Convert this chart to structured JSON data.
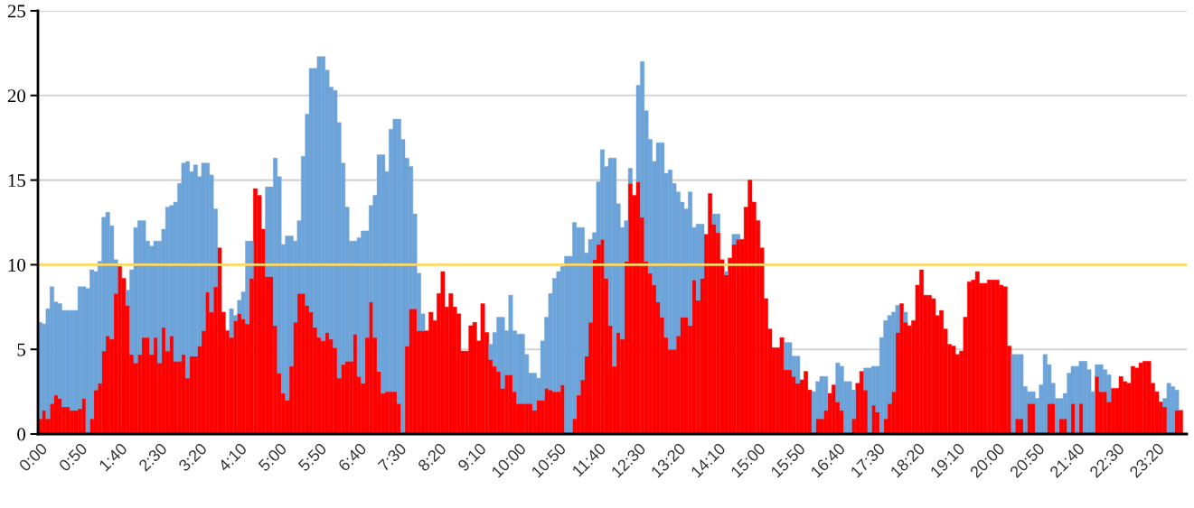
{
  "chart_data": {
    "type": "bar",
    "stacked": true,
    "categories": [
      "0:00",
      null,
      null,
      null,
      null,
      null,
      null,
      null,
      null,
      null,
      "0:50",
      null,
      null,
      null,
      null,
      null,
      null,
      null,
      null,
      null,
      "1:40",
      null,
      null,
      null,
      null,
      null,
      null,
      null,
      null,
      null,
      "2:30",
      null,
      null,
      null,
      null,
      null,
      null,
      null,
      null,
      null,
      "3:20",
      null,
      null,
      null,
      null,
      null,
      null,
      null,
      null,
      null,
      "4:10",
      null,
      null,
      null,
      null,
      null,
      null,
      null,
      null,
      null,
      "5:00",
      null,
      null,
      null,
      null,
      null,
      null,
      null,
      null,
      null,
      "5:50",
      null,
      null,
      null,
      null,
      null,
      null,
      null,
      null,
      null,
      "6:40",
      null,
      null,
      null,
      null,
      null,
      null,
      null,
      null,
      null,
      "7:30",
      null,
      null,
      null,
      null,
      null,
      null,
      null,
      null,
      null,
      "8:20",
      null,
      null,
      null,
      null,
      null,
      null,
      null,
      null,
      null,
      "9:10",
      null,
      null,
      null,
      null,
      null,
      null,
      null,
      null,
      null,
      "10:00",
      null,
      null,
      null,
      null,
      null,
      null,
      null,
      null,
      null,
      "10:50",
      null,
      null,
      null,
      null,
      null,
      null,
      null,
      null,
      null,
      "11:40",
      null,
      null,
      null,
      null,
      null,
      null,
      null,
      null,
      null,
      "12:30",
      null,
      null,
      null,
      null,
      null,
      null,
      null,
      null,
      null,
      "13:20",
      null,
      null,
      null,
      null,
      null,
      null,
      null,
      null,
      null,
      "14:10",
      null,
      null,
      null,
      null,
      null,
      null,
      null,
      null,
      null,
      "15:00",
      null,
      null,
      null,
      null,
      null,
      null,
      null,
      null,
      null,
      "15:50",
      null,
      null,
      null,
      null,
      null,
      null,
      null,
      null,
      null,
      "16:40",
      null,
      null,
      null,
      null,
      null,
      null,
      null,
      null,
      null,
      "17:30",
      null,
      null,
      null,
      null,
      null,
      null,
      null,
      null,
      null,
      "18:20",
      null,
      null,
      null,
      null,
      null,
      null,
      null,
      null,
      null,
      "19:10",
      null,
      null,
      null,
      null,
      null,
      null,
      null,
      null,
      null,
      "20:00",
      null,
      null,
      null,
      null,
      null,
      null,
      null,
      null,
      null,
      "20:50",
      null,
      null,
      null,
      null,
      null,
      null,
      null,
      null,
      null,
      "21:40",
      null,
      null,
      null,
      null,
      null,
      null,
      null,
      null,
      null,
      "22:30",
      null,
      null,
      null,
      null,
      null,
      null,
      null,
      null,
      null,
      "23:20",
      null,
      null,
      null,
      null,
      null,
      null,
      null
    ],
    "series": [
      {
        "color": "#ff0000",
        "values": [
          0.9,
          1.4,
          0.9,
          1.8,
          2.3,
          2.1,
          1.6,
          1.6,
          1.4,
          1.4,
          1.5,
          2.1,
          0,
          0.9,
          2.6,
          3.0,
          4.9,
          5.8,
          5.6,
          8.3,
          9.9,
          9.2,
          7.6,
          4.7,
          4.2,
          4.7,
          5.7,
          5.7,
          4.7,
          5.7,
          4.2,
          6.3,
          4.9,
          5.8,
          4.3,
          4.3,
          4.7,
          3.3,
          4.6,
          4.6,
          5.2,
          6.1,
          8.4,
          7.2,
          8.7,
          11.0,
          7.2,
          6.1,
          5.7,
          6.7,
          7.1,
          6.8,
          6.5,
          9.2,
          14.5,
          14.1,
          12.1,
          9.3,
          9.3,
          6.4,
          3.6,
          2.4,
          2.0,
          4.0,
          6.6,
          8.3,
          8.3,
          7.6,
          7.2,
          6.3,
          5.7,
          5.5,
          6.0,
          5.6,
          5.1,
          3.3,
          4.1,
          4.3,
          4.3,
          5.9,
          3.4,
          3.0,
          5.7,
          7.8,
          5.7,
          3.7,
          2.4,
          2.5,
          2.5,
          2.5,
          1.8,
          0,
          5.2,
          7.4,
          7.4,
          6.1,
          6.1,
          6.1,
          7.2,
          6.7,
          8.3,
          9.6,
          7.5,
          8.3,
          7.5,
          7.1,
          4.9,
          4.9,
          6.4,
          6.6,
          5.5,
          7.7,
          6.0,
          4.4,
          4.0,
          3.7,
          2.7,
          3.5,
          3.5,
          2.5,
          1.8,
          1.8,
          1.8,
          1.8,
          1.4,
          2.0,
          2.0,
          2.7,
          2.6,
          2.5,
          2.5,
          2.9,
          0,
          0,
          0.9,
          2.3,
          3.2,
          4.6,
          6.6,
          10.3,
          11.2,
          11.5,
          9.2,
          6.4,
          4.0,
          6.0,
          5.6,
          10.2,
          14.8,
          14.1,
          14.9,
          12.8,
          10.2,
          9.5,
          8.8,
          7.8,
          6.9,
          5.7,
          5.0,
          5.0,
          5.8,
          6.9,
          6.9,
          6.4,
          9.1,
          7.9,
          9.2,
          11.8,
          14.2,
          12.4,
          11.9,
          10.3,
          9.4,
          10.4,
          11.2,
          11.5,
          11.5,
          13.4,
          15.0,
          13.7,
          12.6,
          11.0,
          8.0,
          6.2,
          5.1,
          5.1,
          5.7,
          3.8,
          3.8,
          3.4,
          3.0,
          3.2,
          3.7,
          2.6,
          0,
          0.9,
          0.9,
          1.4,
          2.4,
          2.9,
          1.9,
          1.4,
          0,
          0,
          0.9,
          3.0,
          3.7,
          2.6,
          0,
          1.7,
          1.3,
          0,
          0.9,
          1.8,
          2.5,
          6.0,
          7.7,
          6.6,
          6.4,
          6.7,
          8.8,
          9.7,
          8.2,
          8.2,
          8.0,
          7.0,
          7.3,
          6.2,
          5.3,
          5.2,
          4.7,
          4.9,
          6.9,
          9.0,
          9.1,
          9.6,
          8.9,
          8.9,
          9.1,
          9.1,
          9.1,
          8.8,
          8.7,
          5.2,
          0,
          0.9,
          0.9,
          0,
          1.8,
          1.8,
          0,
          0,
          0,
          1.8,
          1.8,
          0,
          0.9,
          0.9,
          0,
          1.8,
          0,
          1.8,
          0,
          0,
          0,
          3.4,
          2.5,
          2.5,
          1.9,
          2.7,
          2.7,
          3.4,
          3.1,
          3.0,
          4.0,
          3.9,
          4.2,
          4.3,
          4.3,
          3.0,
          2.5,
          1.9,
          1.6,
          0,
          0,
          1.4,
          1.4,
          0
        ]
      },
      {
        "color": "#6ca3d9",
        "values": [
          5.7,
          5.1,
          6.5,
          6.9,
          5.5,
          5.6,
          5.7,
          5.7,
          5.9,
          5.9,
          7.2,
          6.6,
          8.6,
          8.8,
          7.0,
          7.2,
          7.9,
          7.3,
          6.7,
          2.0,
          null,
          null,
          0.9,
          5.0,
          8.0,
          7.9,
          6.9,
          5.7,
          6.4,
          5.7,
          7.2,
          5.8,
          8.5,
          7.7,
          9.4,
          10.5,
          11.3,
          12.8,
          10.9,
          11.3,
          10.0,
          9.9,
          7.6,
          8.1,
          4.6,
          null,
          null,
          null,
          1.7,
          0.3,
          0.8,
          1.6,
          4.9,
          2.2,
          null,
          null,
          null,
          5.3,
          5.3,
          9.9,
          11.6,
          8.8,
          9.7,
          7.7,
          4.8,
          4.3,
          8.1,
          11.3,
          14.4,
          15.3,
          16.6,
          16.8,
          15.5,
          14.9,
          15.2,
          15.1,
          11.9,
          9.1,
          7.1,
          5.5,
          8.2,
          9.0,
          6.3,
          5.7,
          8.4,
          12.8,
          14.1,
          13.0,
          15.5,
          16.1,
          16.8,
          17.4,
          11.1,
          8.4,
          5.6,
          3.4,
          1.0,
          null,
          null,
          null,
          null,
          null,
          null,
          null,
          null,
          null,
          null,
          null,
          null,
          null,
          null,
          null,
          null,
          0.9,
          2.0,
          3.2,
          4.2,
          2.6,
          4.7,
          3.6,
          4.1,
          4.1,
          2.9,
          1.8,
          2.2,
          1.3,
          3.5,
          4.2,
          5.7,
          6.7,
          7.1,
          7.0,
          10.5,
          10.5,
          11.6,
          9.9,
          9.0,
          6.1,
          4.9,
          1.6,
          3.7,
          5.3,
          6.6,
          9.9,
          12.3,
          7.6,
          6.6,
          2.4,
          0.9,
          null,
          5.7,
          9.2,
          8.9,
          7.9,
          7.3,
          9.4,
          10.3,
          9.7,
          10.6,
          9.8,
          8.5,
          6.8,
          6.4,
          7.9,
          3.1,
          4.5,
          3.2,
          null,
          null,
          0.6,
          1.1,
          null,
          0.2,
          null,
          0.6,
          0.3,
          null,
          null,
          null,
          null,
          null,
          null,
          null,
          null,
          null,
          null,
          null,
          1.6,
          1.6,
          1.2,
          1.6,
          null,
          null,
          null,
          2.5,
          2.2,
          2.5,
          2.0,
          null,
          null,
          2.3,
          2.6,
          3.1,
          3.1,
          1.7,
          null,
          null,
          1.3,
          3.9,
          2.3,
          2.7,
          5.7,
          5.8,
          5.2,
          4.7,
          1.6,
          null,
          0.6,
          null,
          null,
          null,
          null,
          null,
          null,
          null,
          null,
          null,
          null,
          null,
          null,
          null,
          null,
          null,
          null,
          null,
          null,
          null,
          null,
          null,
          null,
          null,
          null,
          null,
          null,
          4.7,
          3.8,
          3.8,
          2.8,
          0.7,
          0.7,
          2.1,
          2.9,
          4.7,
          2.3,
          1.2,
          2.1,
          1.2,
          1.5,
          3.6,
          2.2,
          4.0,
          2.5,
          4.3,
          3.8,
          2.5,
          0.7,
          1.6,
          1.3,
          1.6,
          null,
          null,
          null,
          null,
          null,
          null,
          null,
          null,
          null,
          null,
          null,
          null,
          null,
          0.5,
          3.0,
          2.8,
          1.2,
          null,
          null
        ]
      }
    ],
    "ylim": [
      0,
      25
    ],
    "yticks": [
      0,
      5,
      10,
      15,
      20,
      25
    ],
    "ref_lines": [
      {
        "axis": "y",
        "value": 10,
        "color": "#ffd966"
      }
    ],
    "grid": "y"
  }
}
